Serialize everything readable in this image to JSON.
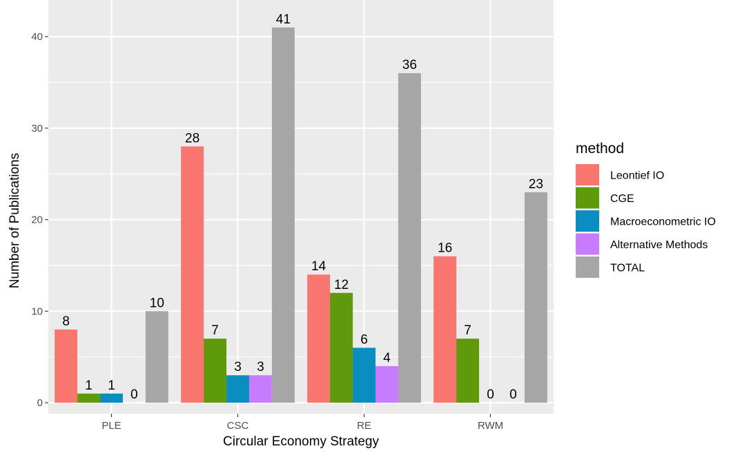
{
  "chart_data": {
    "type": "bar",
    "categories": [
      "PLE",
      "CSC",
      "RE",
      "RWM"
    ],
    "series": [
      {
        "name": "Leontief IO",
        "color": "#F8766D",
        "values": [
          8,
          28,
          14,
          16
        ]
      },
      {
        "name": "CGE",
        "color": "#5E9A0C",
        "values": [
          1,
          7,
          12,
          7
        ]
      },
      {
        "name": "Macroeconometric IO",
        "color": "#0A8EBF",
        "values": [
          1,
          3,
          6,
          0
        ]
      },
      {
        "name": "Alternative Methods",
        "color": "#C77CFF",
        "values": [
          0,
          3,
          4,
          0
        ]
      },
      {
        "name": "TOTAL",
        "color": "#A6A6A6",
        "values": [
          10,
          41,
          36,
          23
        ]
      }
    ],
    "data_labels": [
      [
        "8",
        "1",
        "1",
        "0",
        "10"
      ],
      [
        "28",
        "7",
        "3",
        "3",
        "41"
      ],
      [
        "14",
        "12",
        "6",
        "4",
        "36"
      ],
      [
        "16",
        "7",
        "0",
        "0",
        "23"
      ]
    ],
    "title": "",
    "xlabel": "Circular Economy Strategy",
    "ylabel": "Number of Publications",
    "ylim": [
      -1.2,
      44
    ],
    "yticks": [
      0,
      10,
      20,
      30,
      40
    ],
    "grid": true,
    "legend": {
      "title": "method",
      "position": "right"
    },
    "panel_background": "#EBEBEB",
    "grid_color": "#FFFFFF"
  }
}
